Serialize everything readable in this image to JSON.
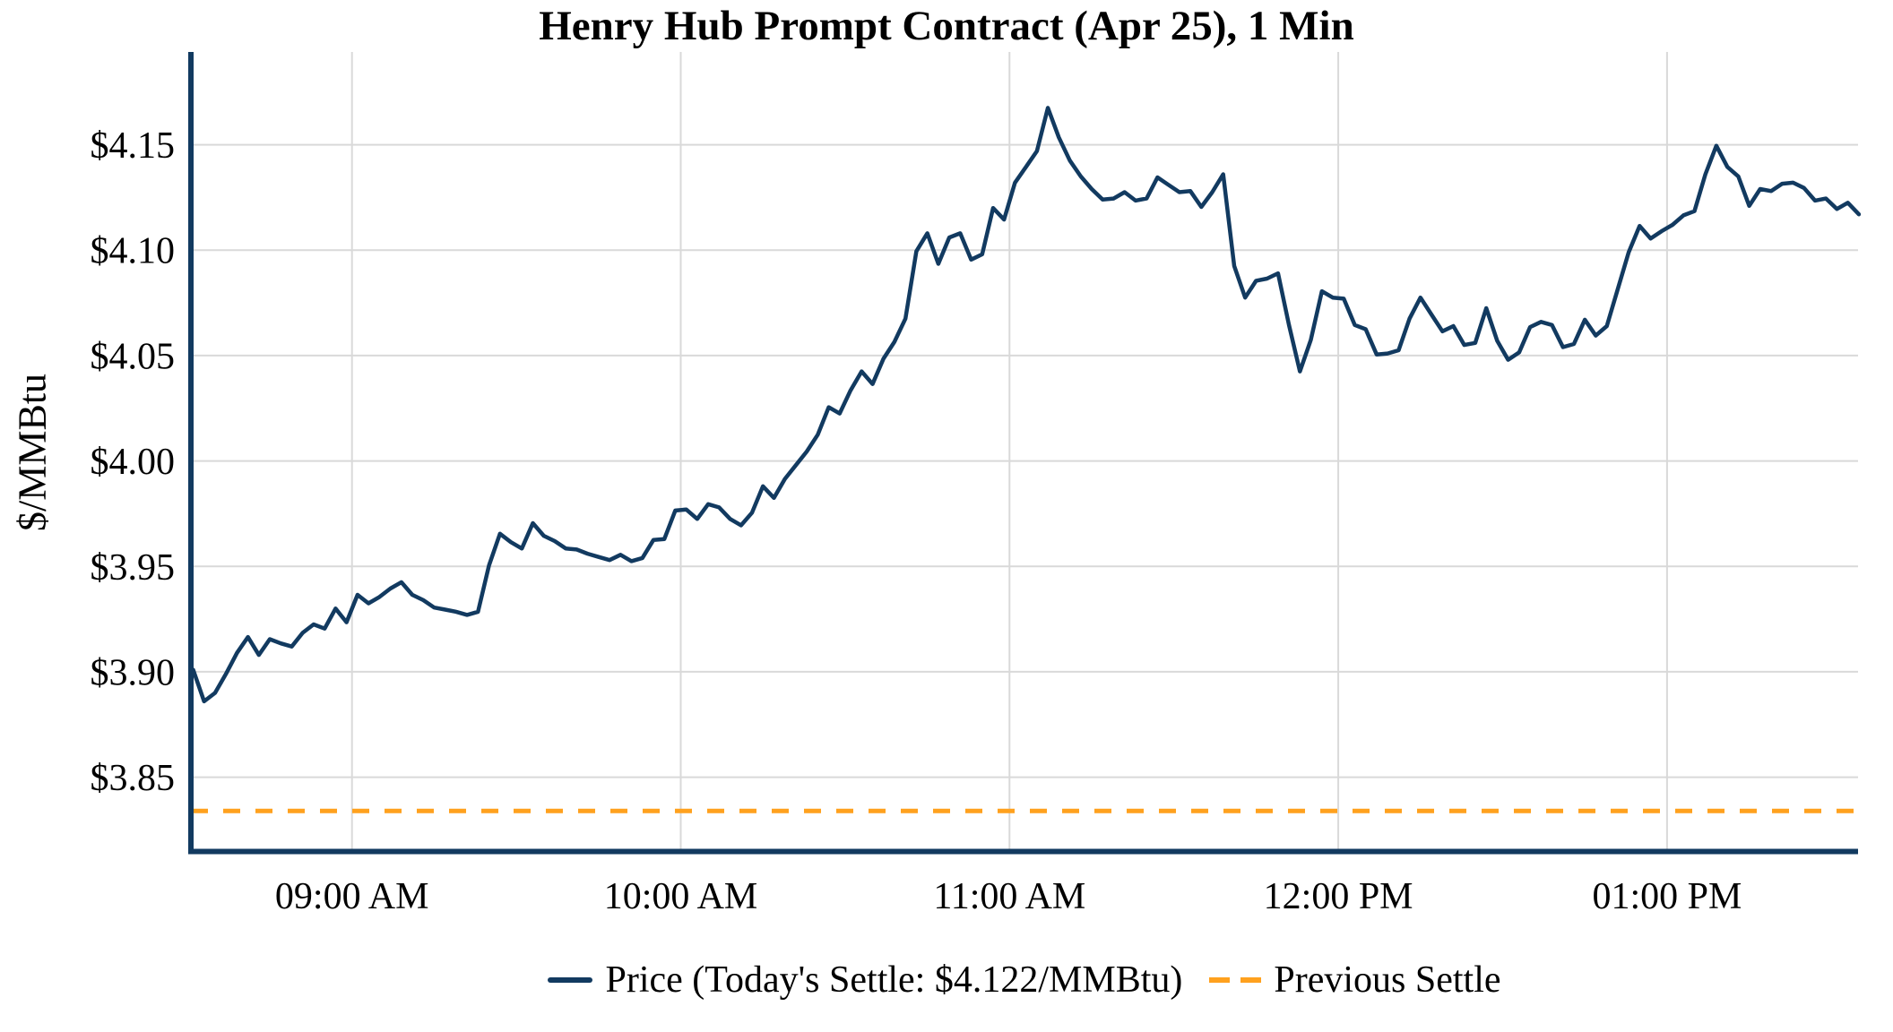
{
  "title": "Henry Hub Prompt Contract (Apr 25), 1 Min",
  "legend": {
    "price_label": "Price (Today's Settle: $4.122/MMBtu)",
    "prev_label": "Previous Settle"
  },
  "colors": {
    "price_line": "#123a60",
    "prev_settle_line": "#ffa11e",
    "grid": "#d9d9d9",
    "spine": "#123a60",
    "text": "#000000",
    "background": "#ffffff"
  },
  "chart_data": {
    "type": "line",
    "title": "Henry Hub Prompt Contract (Apr 25), 1 Min",
    "xlabel": "",
    "ylabel": "$/MMBtu",
    "grid": true,
    "legend_position": "bottom-center",
    "xlim_hours": [
      8.51,
      13.581
    ],
    "ylim": [
      3.815,
      4.194
    ],
    "today_settle": 4.122,
    "previous_settle": 3.834,
    "x_ticks": [
      {
        "hour": 9,
        "label": "09:00 AM"
      },
      {
        "hour": 10,
        "label": "10:00 AM"
      },
      {
        "hour": 11,
        "label": "11:00 AM"
      },
      {
        "hour": 12,
        "label": "12:00 PM"
      },
      {
        "hour": 13,
        "label": "01:00 PM"
      }
    ],
    "y_ticks": [
      {
        "value": 3.85,
        "label": "$3.85"
      },
      {
        "value": 3.9,
        "label": "$3.90"
      },
      {
        "value": 3.95,
        "label": "$3.95"
      },
      {
        "value": 4.0,
        "label": "$4.00"
      },
      {
        "value": 4.05,
        "label": "$4.05"
      },
      {
        "value": 4.1,
        "label": "$4.10"
      },
      {
        "value": 4.15,
        "label": "$4.15"
      }
    ],
    "series": [
      {
        "name": "Price (Today's Settle: $4.122/MMBtu)",
        "style": "solid",
        "start_hour": 8.5167,
        "step_minutes": 2,
        "values": [
          3.901,
          3.886,
          3.89,
          3.899,
          3.909,
          3.9165,
          3.908,
          3.9155,
          3.9135,
          3.912,
          3.9185,
          3.9225,
          3.9205,
          3.93,
          3.9235,
          3.9365,
          3.9325,
          3.9355,
          3.9395,
          3.9425,
          3.9365,
          3.934,
          3.9305,
          3.9295,
          3.9285,
          3.927,
          3.9285,
          3.9505,
          3.9655,
          3.9615,
          3.9585,
          3.9705,
          3.9645,
          3.962,
          3.9585,
          3.958,
          3.956,
          3.9545,
          3.953,
          3.9555,
          3.9525,
          3.954,
          3.9625,
          3.963,
          3.9765,
          3.977,
          3.9725,
          3.9795,
          3.978,
          3.9725,
          3.9695,
          3.9755,
          3.988,
          3.9825,
          3.9915,
          3.998,
          4.0045,
          4.0125,
          4.0255,
          4.0225,
          4.0335,
          4.0425,
          4.0365,
          4.0485,
          4.0565,
          4.0675,
          4.0995,
          4.108,
          4.0935,
          4.106,
          4.108,
          4.0955,
          4.098,
          4.12,
          4.1145,
          4.132,
          4.1395,
          4.147,
          4.1675,
          4.1535,
          4.1425,
          4.135,
          4.129,
          4.124,
          4.1245,
          4.1275,
          4.1235,
          4.1245,
          4.1345,
          4.131,
          4.1275,
          4.128,
          4.1205,
          4.1275,
          4.136,
          4.0925,
          4.0775,
          4.0855,
          4.0865,
          4.089,
          4.0645,
          4.0425,
          4.0575,
          4.0805,
          4.0775,
          4.077,
          4.0645,
          4.0625,
          4.0505,
          4.051,
          4.0525,
          4.0675,
          4.0775,
          4.0695,
          4.0615,
          4.064,
          4.055,
          4.056,
          4.0725,
          4.057,
          4.048,
          4.0515,
          4.0635,
          4.066,
          4.0645,
          4.054,
          4.0555,
          4.067,
          4.0595,
          4.064,
          4.0815,
          4.099,
          4.1115,
          4.1055,
          4.109,
          4.112,
          4.1165,
          4.1185,
          4.136,
          4.1495,
          4.1395,
          4.135,
          4.121,
          4.129,
          4.128,
          4.1315,
          4.132,
          4.1295,
          4.1235,
          4.1245,
          4.1195,
          4.1225,
          4.117
        ]
      },
      {
        "name": "Previous Settle",
        "style": "dashed",
        "constant_value": 3.834
      }
    ]
  }
}
